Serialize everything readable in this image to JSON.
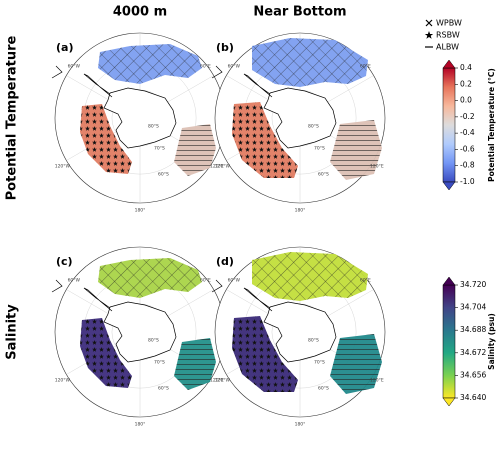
{
  "column_titles": [
    "4000 m",
    "Near Bottom"
  ],
  "row_titles": [
    "Potential Temperature",
    "Salinity"
  ],
  "panels": [
    {
      "label": "(a)"
    },
    {
      "label": "(b)"
    },
    {
      "label": "(c)"
    },
    {
      "label": "(d)"
    }
  ],
  "map_labels": {
    "longitudes": [
      "60°W",
      "60°E",
      "120°W",
      "120°E",
      "180°"
    ],
    "latitudes": [
      "60°S",
      "70°S",
      "80°S"
    ]
  },
  "legend": {
    "entries": [
      {
        "name": "WPBW",
        "marker": "cross"
      },
      {
        "name": "RSBW",
        "marker": "star"
      },
      {
        "name": "ALBW",
        "marker": "line"
      }
    ]
  },
  "colorbars": [
    {
      "title": "Potential Temperature (°C)",
      "lim": [
        -1.0,
        0.4
      ],
      "ticks": [
        0.4,
        0.2,
        {
          "value": 0.0,
          "label": "0.0"
        },
        -0.2,
        -0.4,
        -0.6,
        -0.8,
        {
          "value": -1.0,
          "label": "-1.0"
        }
      ],
      "colors": [
        "#3b4cc0",
        "#7396f5",
        "#b0cbfc",
        "#dddcdc",
        "#f7b89c",
        "#e7745b",
        "#b40426"
      ]
    },
    {
      "title": "Salinity (psu)",
      "lim": [
        34.64,
        34.72
      ],
      "ticks": [
        {
          "value": 34.72,
          "label": "34.720"
        },
        34.704,
        34.688,
        34.672,
        34.656,
        {
          "value": 34.64,
          "label": "34.640"
        }
      ],
      "colors": [
        "#fde725",
        "#7ad151",
        "#22a884",
        "#2a788e",
        "#414487",
        "#440154"
      ]
    }
  ]
}
